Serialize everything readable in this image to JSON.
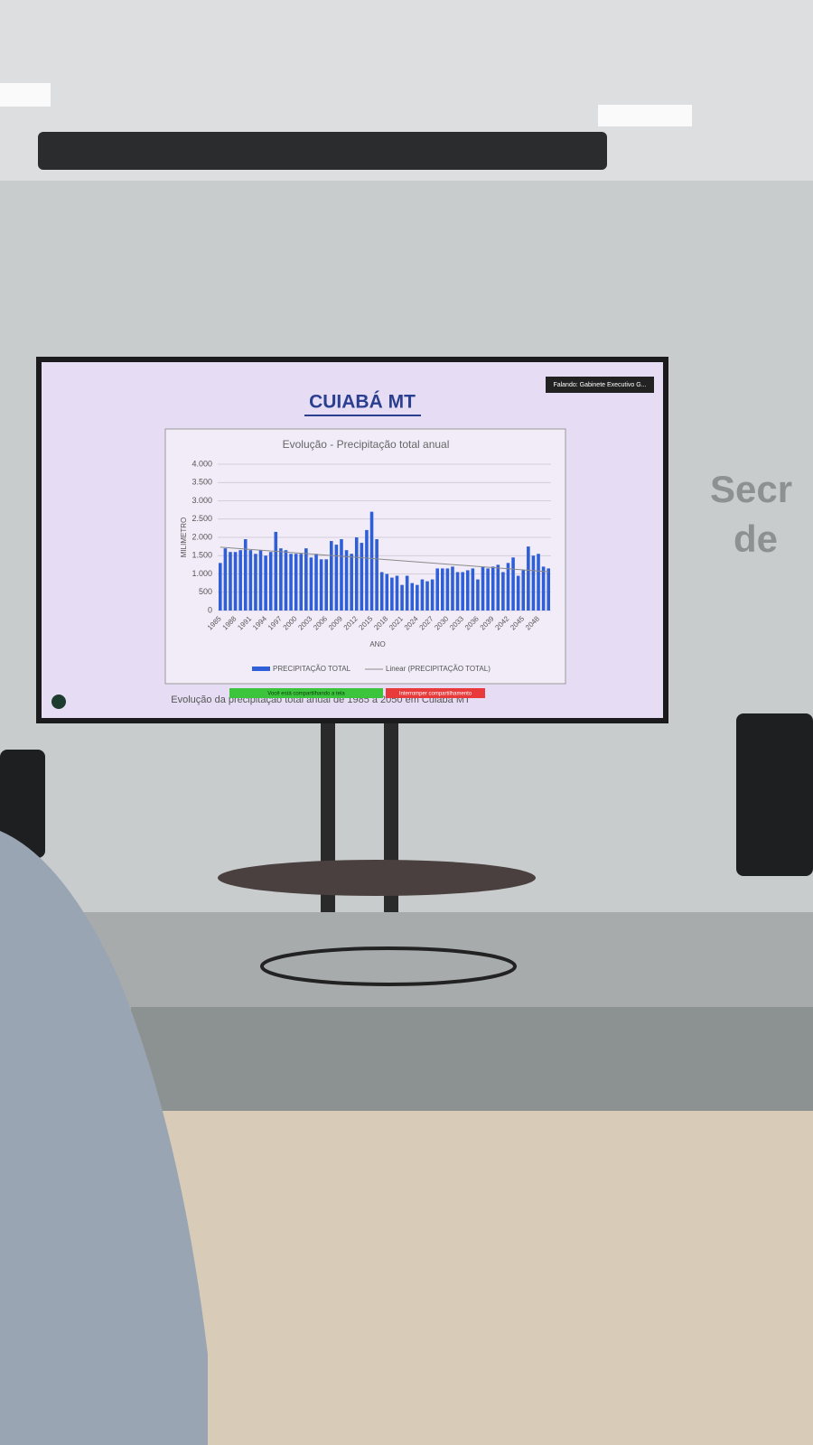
{
  "slide_title": "CUIABÁ MT",
  "caption": "Evolução da precipitação total anual de 1985 a 2050 em Cuiabá MT",
  "speaker": "Falando: Gabinete Executivo G...",
  "share_bar": {
    "status": "Você está compartilhando a tela",
    "stop": "Interromper compartilhamento"
  },
  "wall_sign": [
    "Secr",
    "de"
  ],
  "chart_data": {
    "type": "bar",
    "title": "Evolução - Precipitação total anual",
    "xlabel": "ANO",
    "ylabel": "MILIMETRO",
    "categories": [
      1985,
      null,
      null,
      1988,
      null,
      null,
      1991,
      null,
      null,
      1994,
      null,
      null,
      1997,
      null,
      null,
      2000,
      null,
      null,
      2003,
      null,
      null,
      2006,
      null,
      null,
      2009,
      null,
      null,
      2012,
      null,
      null,
      2015,
      null,
      null,
      2018,
      null,
      null,
      2021,
      null,
      null,
      2024,
      null,
      null,
      2027,
      null,
      null,
      2030,
      null,
      null,
      2033,
      null,
      null,
      2036,
      null,
      null,
      2039,
      null,
      null,
      2042,
      null,
      null,
      2045,
      null,
      null,
      2048,
      null,
      null
    ],
    "series": [
      {
        "name": "PRECIPITAÇÃO TOTAL",
        "color": "#2f5fd8",
        "values": [
          1300,
          1700,
          1600,
          1600,
          1650,
          1950,
          1650,
          1550,
          1650,
          1500,
          1600,
          2150,
          1700,
          1650,
          1550,
          1550,
          1550,
          1700,
          1450,
          1550,
          1400,
          1400,
          1900,
          1800,
          1950,
          1650,
          1550,
          2000,
          1850,
          2200,
          2700,
          1950,
          1050,
          1000,
          900,
          950,
          700,
          950,
          750,
          700,
          850,
          800,
          850,
          1150,
          1150,
          1150,
          1200,
          1050,
          1050,
          1100,
          1150,
          850,
          1200,
          1150,
          1200,
          1250,
          1050,
          1300,
          1450,
          950,
          1100,
          1750,
          1500,
          1550,
          1200,
          1150
        ]
      }
    ],
    "trendline": {
      "name": "Linear (PRECIPITAÇÃO TOTAL)",
      "color": "#8a8a8a"
    },
    "ylim": [
      0,
      4000
    ],
    "yticks": [
      0,
      500,
      {
        "value": 1000,
        "label": "1.000"
      },
      {
        "value": 1500,
        "label": "1.500"
      },
      {
        "value": 2000,
        "label": "2.000"
      },
      {
        "value": 2500,
        "label": "2.500"
      },
      {
        "value": 3000,
        "label": "3.000"
      },
      {
        "value": 3500,
        "label": "3.500"
      },
      {
        "value": 4000,
        "label": "4.000"
      }
    ],
    "grid": true
  }
}
